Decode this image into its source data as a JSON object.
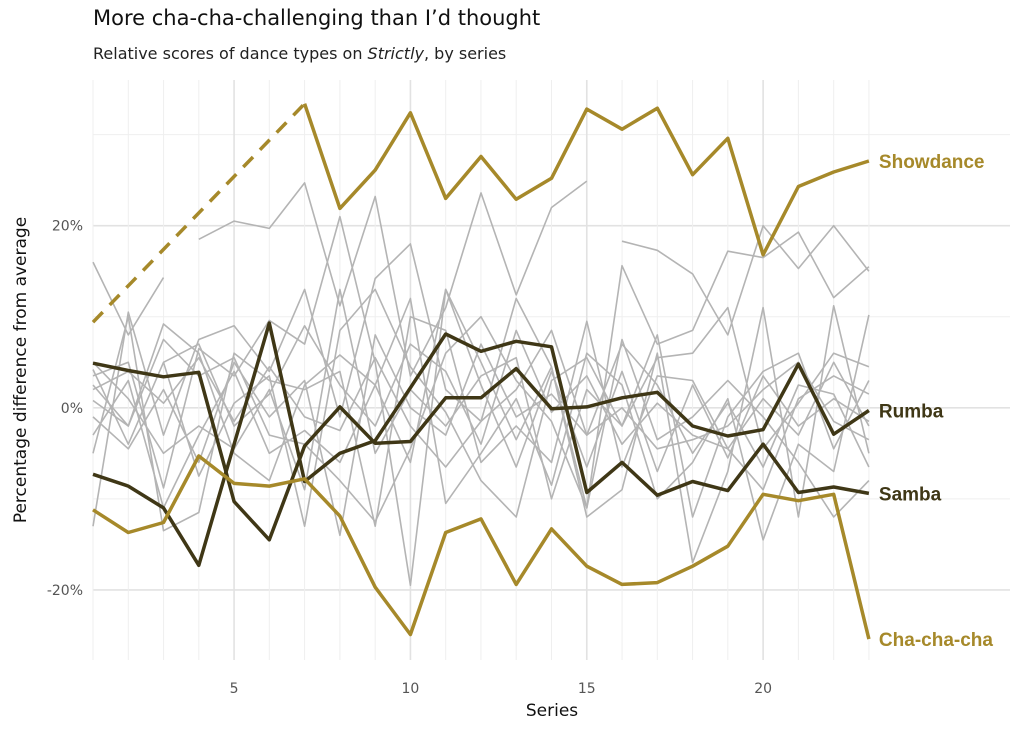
{
  "chart_data": {
    "type": "line",
    "title": "More cha-cha-challenging than I’d thought",
    "subtitle_parts": [
      "Relative scores of dance types on ",
      "Strictly",
      ", by series"
    ],
    "xlabel": "Series",
    "ylabel": "Percentage difference from average",
    "xlim": [
      1,
      27
    ],
    "ylim": [
      -27.7,
      36
    ],
    "x_ticks": [
      5,
      10,
      15,
      20
    ],
    "y_ticks": [
      {
        "value": 20,
        "label": "20%"
      },
      {
        "value": 0,
        "label": "0%"
      },
      {
        "value": -20,
        "label": "-20%"
      }
    ],
    "grid": true,
    "x": [
      1,
      2,
      3,
      4,
      5,
      6,
      7,
      8,
      9,
      10,
      11,
      12,
      13,
      14,
      15,
      16,
      17,
      18,
      19,
      20,
      21,
      22,
      23
    ],
    "colors": {
      "gold": "#a6892a",
      "dark": "#3f3716",
      "gray": "#b4b4b4"
    },
    "highlighted": [
      {
        "name": "Showdance",
        "color": "gold",
        "dashed_segment": {
          "x": [
            1,
            7
          ],
          "values": [
            9.4,
            33.4
          ]
        },
        "values": [
          null,
          null,
          null,
          null,
          null,
          null,
          33.4,
          21.9,
          26.1,
          32.4,
          23.0,
          27.6,
          22.9,
          25.2,
          32.8,
          30.6,
          32.9,
          25.6,
          29.6,
          16.8,
          24.3,
          25.9,
          27.1
        ]
      },
      {
        "name": "Rumba",
        "color": "dark",
        "values": [
          4.9,
          4.1,
          3.4,
          3.9,
          -10.3,
          -14.5,
          -4.2,
          0.1,
          -3.9,
          -3.7,
          1.1,
          1.1,
          4.3,
          -0.1,
          0.1,
          1.1,
          1.7,
          -2.0,
          -3.1,
          -2.4,
          4.8,
          -2.9,
          -0.3
        ]
      },
      {
        "name": "Samba",
        "color": "dark",
        "values": [
          -7.3,
          -8.6,
          -11.0,
          -17.3,
          -4.0,
          9.3,
          -8.1,
          -5.0,
          -3.6,
          2.2,
          8.1,
          6.2,
          7.3,
          6.7,
          -9.3,
          -6.0,
          -9.6,
          -8.1,
          -9.1,
          -4.0,
          -9.3,
          -8.7,
          -9.4
        ]
      },
      {
        "name": "Cha-cha-cha",
        "color": "gold",
        "values": [
          -11.2,
          -13.7,
          -12.6,
          -5.3,
          -8.3,
          -8.6,
          -7.8,
          -11.9,
          -19.7,
          -24.9,
          -13.7,
          -12.2,
          -19.4,
          -13.3,
          -17.4,
          -19.4,
          -19.2,
          -17.4,
          -15.2,
          -9.5,
          -10.2,
          -9.5,
          -25.4
        ]
      }
    ],
    "other_series": [
      [
        null,
        null,
        null,
        18.5,
        20.5,
        19.7,
        24.7,
        11.2,
        23.2,
        3.5,
        11.0,
        23.6,
        12.4,
        22.0,
        24.9,
        null,
        null,
        null,
        null,
        null,
        null,
        null,
        null
      ],
      [
        16.0,
        8.0,
        14.3,
        null,
        null,
        null,
        null,
        null,
        null,
        null,
        null,
        null,
        null,
        null,
        null,
        18.3,
        17.3,
        14.7,
        8.0,
        20.0,
        15.3,
        20.0,
        15.0
      ],
      [
        -13.0,
        10.5,
        -3.0,
        7.5,
        9.0,
        4.0,
        13.0,
        -1.0,
        14.2,
        18.0,
        2.0,
        -1.5,
        12.0,
        4.5,
        -11.0,
        15.6,
        7.0,
        8.5,
        17.2,
        16.5,
        19.3,
        12.1,
        15.5
      ],
      [
        3.5,
        5.0,
        -8.8,
        6.5,
        3.5,
        9.6,
        7.0,
        21.0,
        5.0,
        -19.5,
        13.0,
        5.0,
        -3.5,
        4.5,
        -12.0,
        -9.0,
        6.0,
        -17.0,
        -7.0,
        11.0,
        -12.0,
        11.2,
        -5.0
      ],
      [
        0.8,
        -2.0,
        9.2,
        6.0,
        -5.0,
        -8.0,
        2.5,
        5.8,
        2.5,
        12.0,
        -10.5,
        -5.0,
        1.0,
        -8.5,
        6.0,
        2.5,
        -10.0,
        -6.0,
        1.0,
        -14.5,
        -4.0,
        -7.0,
        10.2
      ],
      [
        4.2,
        -4.0,
        5.0,
        -7.5,
        0.5,
        3.5,
        -13.0,
        8.5,
        13.0,
        4.5,
        -0.5,
        -8.0,
        -12.0,
        3.0,
        5.5,
        -2.0,
        8.0,
        -12.0,
        -1.0,
        4.0,
        6.0,
        -4.5,
        3.0
      ],
      [
        -5.0,
        10.0,
        -13.5,
        -11.5,
        6.0,
        3.0,
        2.0,
        4.0,
        -13.0,
        10.0,
        8.5,
        -6.0,
        -2.0,
        -6.0,
        9.5,
        -6.5,
        3.5,
        3.0,
        -4.5,
        1.0,
        -3.0,
        5.0,
        -2.0
      ],
      [
        2.5,
        -2.0,
        7.5,
        3.5,
        5.5,
        -3.0,
        -4.0,
        -8.0,
        -12.5,
        -4.5,
        6.0,
        10.0,
        3.0,
        -1.5,
        -11.0,
        7.5,
        -3.5,
        -1.0,
        3.0,
        -1.0,
        -6.0,
        -12.0,
        -8.0
      ],
      [
        null,
        null,
        5.0,
        7.0,
        -2.0,
        1.5,
        9.0,
        2.5,
        -2.0,
        7.0,
        4.0,
        -4.0,
        8.5,
        -0.5,
        3.5,
        -4.0,
        0.5,
        -3.0,
        -4.5,
        -9.0,
        1.0,
        3.5,
        1.5
      ],
      [
        -3.0,
        3.0,
        -11.0,
        -3.0,
        4.0,
        -5.0,
        -2.5,
        -6.0,
        2.5,
        -6.0,
        13.0,
        2.5,
        -6.5,
        4.0,
        -6.5,
        4.0,
        -7.0,
        2.5,
        -5.5,
        3.5,
        -2.0,
        1.0,
        -1.5
      ],
      [
        5.0,
        1.0,
        -5.0,
        -2.0,
        -4.5,
        2.0,
        -9.0,
        13.0,
        -5.0,
        2.0,
        -2.0,
        3.5,
        5.5,
        -10.0,
        2.0,
        -2.0,
        5.5,
        6.0,
        11.0,
        -4.5,
        0.5,
        6.0,
        4.5
      ],
      [
        -1.0,
        -4.5,
        2.0,
        -6.0,
        5.0,
        -1.0,
        3.0,
        -14.0,
        8.0,
        0.0,
        -3.0,
        7.0,
        -1.0,
        1.5,
        -3.0,
        0.0,
        -4.5,
        -3.5,
        -2.0,
        2.0,
        5.0,
        -1.5,
        -3.5
      ],
      [
        2.0,
        4.0,
        0.5,
        5.5,
        -1.5,
        4.5,
        -1.0,
        -2.5,
        5.5,
        -2.0,
        -6.5,
        -1.5,
        2.0,
        8.5,
        -3.0,
        7.0,
        2.5,
        -5.0,
        0.5,
        -6.5,
        2.5,
        1.5,
        -6.5
      ]
    ]
  }
}
